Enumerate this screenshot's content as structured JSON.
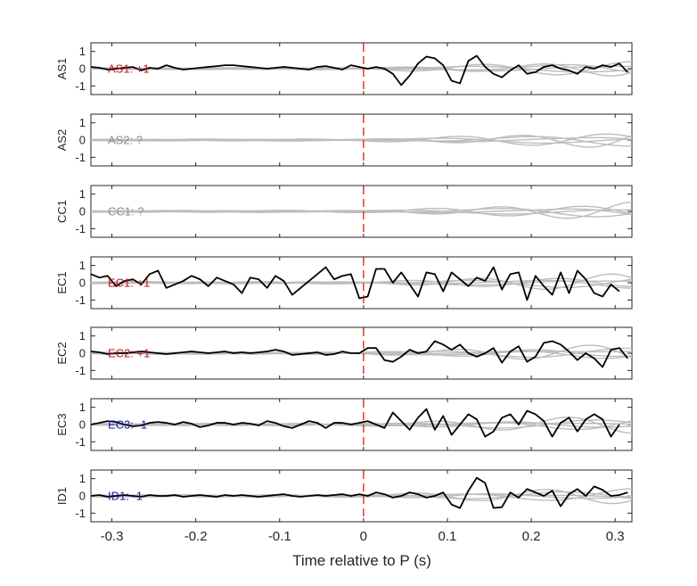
{
  "chart_data": {
    "type": "line",
    "xlabel": "Time relative to P (s)",
    "xlim": [
      -0.325,
      0.32
    ],
    "ylim": [
      -1.5,
      1.5
    ],
    "x_ticks": [
      -0.3,
      -0.2,
      -0.1,
      0,
      0.1,
      0.2,
      0.3
    ],
    "x_tick_labels": [
      "-0.3",
      "-0.2",
      "-0.1",
      "0",
      "0.1",
      "0.2",
      "0.3"
    ],
    "y_ticks": [
      -1,
      0,
      1
    ],
    "y_tick_labels": [
      "-1",
      "0",
      "1"
    ],
    "marker_x": 0,
    "colors": {
      "main_trace": "#000000",
      "background_traces": "#bdbdbd",
      "marker_line": "#e8271e",
      "label_positive": "#c0161b",
      "label_negative": "#1a1aa6",
      "label_unknown": "#8c8c8c"
    },
    "panels": [
      {
        "station": "AS1",
        "label": "AS1: +1",
        "polarity": "positive",
        "x_start": -0.325,
        "x_step": 0.01,
        "trace": [
          0.1,
          0.05,
          -0.05,
          0.0,
          0.05,
          0.1,
          -0.1,
          0.05,
          0.0,
          0.2,
          0.05,
          -0.05,
          0.0,
          0.05,
          0.1,
          0.15,
          0.2,
          0.2,
          0.15,
          0.1,
          0.05,
          0.0,
          0.05,
          0.1,
          0.05,
          0.0,
          -0.05,
          0.1,
          0.15,
          0.05,
          -0.05,
          0.2,
          0.1,
          0.0,
          0.1,
          0.0,
          -0.3,
          -0.95,
          -0.4,
          0.3,
          0.7,
          0.6,
          0.2,
          -0.7,
          -0.85,
          0.45,
          0.75,
          0.1,
          -0.3,
          -0.5,
          -0.1,
          0.2,
          -0.3,
          -0.2,
          0.1,
          0.2,
          0.0,
          -0.1,
          -0.3,
          0.1,
          0.0,
          0.2,
          0.1,
          0.3,
          -0.2
        ]
      },
      {
        "station": "AS2",
        "label": "AS2: ?",
        "polarity": "unknown",
        "x_start": -0.325,
        "x_step": 0.01,
        "trace": []
      },
      {
        "station": "CC1",
        "label": "CC1: ?",
        "polarity": "unknown",
        "x_start": -0.325,
        "x_step": 0.01,
        "trace": []
      },
      {
        "station": "EC1",
        "label": "EC1: +1",
        "polarity": "positive",
        "x_start": -0.325,
        "x_step": 0.01,
        "trace": [
          0.5,
          0.3,
          0.4,
          -0.2,
          0.1,
          0.2,
          -0.1,
          0.5,
          0.7,
          -0.3,
          -0.1,
          0.1,
          0.4,
          0.2,
          -0.2,
          0.3,
          0.1,
          -0.1,
          -0.6,
          0.3,
          0.2,
          -0.3,
          0.4,
          0.1,
          -0.7,
          -0.3,
          0.1,
          0.5,
          0.9,
          0.2,
          0.4,
          0.5,
          -0.9,
          -0.8,
          0.8,
          0.8,
          0.0,
          0.6,
          -0.1,
          -0.8,
          0.6,
          0.5,
          -0.5,
          0.6,
          0.2,
          -0.2,
          0.3,
          0.1,
          0.9,
          -0.4,
          0.5,
          0.6,
          -1.0,
          0.4,
          -0.2,
          -0.7,
          0.6,
          -0.6,
          0.7,
          0.2,
          -0.6,
          -0.8,
          -0.1,
          -0.5
        ]
      },
      {
        "station": "EC2",
        "label": "EC2: +1",
        "polarity": "positive",
        "x_start": -0.325,
        "x_step": 0.01,
        "trace": [
          0.1,
          0.05,
          -0.05,
          0.0,
          0.0,
          0.05,
          0.1,
          0.05,
          0.0,
          -0.05,
          0.0,
          0.05,
          0.1,
          0.05,
          0.0,
          0.05,
          0.1,
          0.0,
          0.05,
          0.0,
          0.05,
          0.1,
          0.2,
          0.1,
          -0.1,
          -0.05,
          0.0,
          0.05,
          -0.1,
          -0.05,
          0.1,
          0.0,
          0.0,
          0.3,
          0.3,
          -0.4,
          -0.5,
          -0.2,
          0.2,
          0.0,
          0.1,
          0.7,
          0.5,
          0.2,
          0.5,
          0.0,
          -0.2,
          0.0,
          0.3,
          -0.55,
          0.1,
          0.4,
          -0.5,
          -0.2,
          0.6,
          0.7,
          0.5,
          0.1,
          -0.4,
          0.0,
          -0.3,
          -0.8,
          0.2,
          0.3,
          -0.3
        ]
      },
      {
        "station": "EC3",
        "label": "EC3: -1",
        "polarity": "negative",
        "x_start": -0.325,
        "x_step": 0.01,
        "trace": [
          0.0,
          0.1,
          0.2,
          0.15,
          0.0,
          -0.1,
          -0.05,
          0.1,
          0.15,
          0.1,
          0.0,
          0.15,
          0.05,
          -0.15,
          -0.05,
          0.1,
          0.1,
          0.0,
          0.1,
          0.05,
          -0.05,
          0.2,
          0.1,
          -0.1,
          -0.2,
          0.0,
          0.2,
          0.1,
          -0.2,
          0.1,
          0.1,
          0.0,
          0.1,
          0.2,
          0.0,
          -0.2,
          0.7,
          0.2,
          -0.3,
          0.4,
          0.9,
          -0.3,
          0.5,
          -0.6,
          0.0,
          0.6,
          0.3,
          -0.7,
          -0.4,
          0.4,
          0.6,
          0.0,
          0.8,
          0.6,
          0.2,
          -0.7,
          0.1,
          0.4,
          -0.4,
          0.3,
          0.6,
          0.3,
          -0.7,
          0.0
        ]
      },
      {
        "station": "ID1",
        "label": "ID1: -1",
        "polarity": "negative",
        "x_start": -0.325,
        "x_step": 0.01,
        "trace": [
          0.0,
          0.05,
          -0.05,
          0.0,
          0.05,
          0.0,
          -0.05,
          0.05,
          0.0,
          0.0,
          0.05,
          -0.05,
          0.0,
          0.05,
          0.0,
          -0.05,
          0.05,
          0.0,
          0.05,
          0.0,
          -0.05,
          0.0,
          0.05,
          0.1,
          0.0,
          -0.05,
          0.0,
          0.05,
          0.0,
          0.05,
          0.1,
          0.0,
          0.1,
          0.0,
          0.2,
          0.1,
          -0.1,
          0.0,
          0.2,
          0.1,
          -0.1,
          0.0,
          0.2,
          -0.5,
          -0.7,
          0.3,
          1.05,
          0.75,
          -0.7,
          -0.65,
          0.2,
          -0.1,
          0.4,
          0.2,
          0.0,
          0.3,
          -0.6,
          0.1,
          0.4,
          0.0,
          0.55,
          0.35,
          0.0,
          0.05,
          0.2
        ]
      }
    ]
  }
}
